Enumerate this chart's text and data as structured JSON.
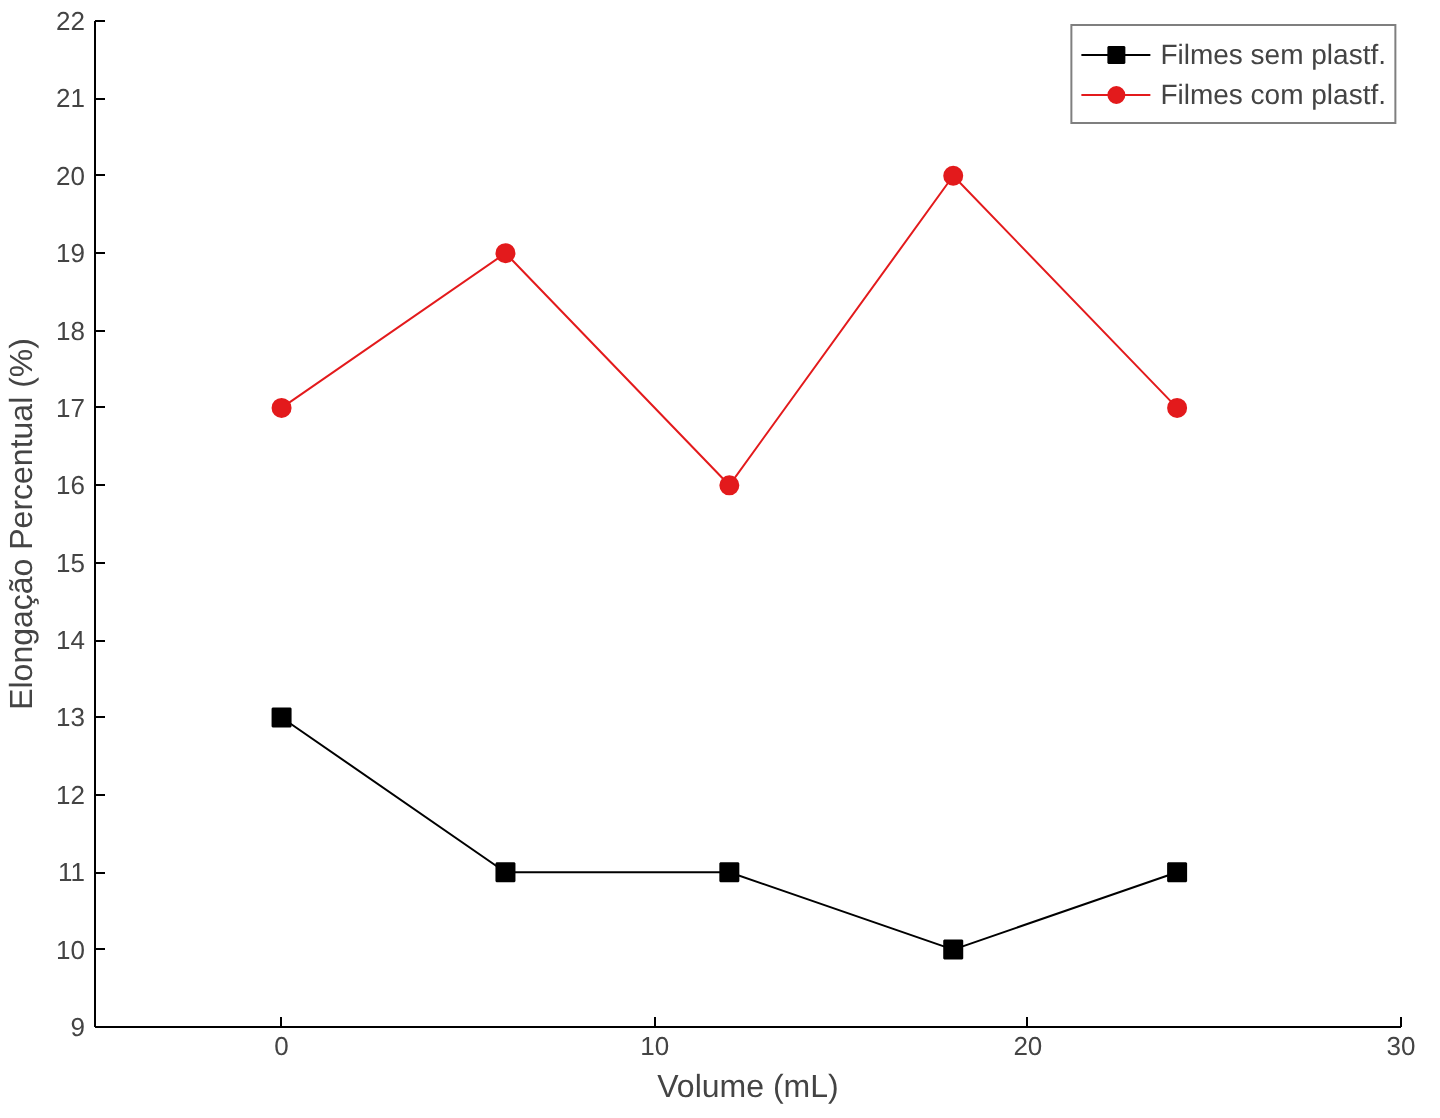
{
  "chart_data": {
    "type": "line",
    "xlabel": "Volume (mL)",
    "ylabel": "Elongação Percentual (%)",
    "x": [
      0,
      6,
      12,
      18,
      24
    ],
    "series": [
      {
        "name": "Filmes sem plastf.",
        "color": "#000000",
        "values": [
          13,
          11,
          11,
          10,
          11
        ],
        "marker": "square"
      },
      {
        "name": "Filmes com plastf.",
        "color": "#e31a1c",
        "values": [
          17,
          19,
          16,
          20,
          17
        ],
        "marker": "circle"
      }
    ],
    "xlim": [
      -5,
      30
    ],
    "xticks": [
      0,
      10,
      20,
      30
    ],
    "ylim": [
      9,
      22
    ],
    "yticks": [
      9,
      10,
      11,
      12,
      13,
      14,
      15,
      16,
      17,
      18,
      19,
      20,
      21,
      22
    ],
    "grid": false,
    "legend": "top right",
    "line_style": "solid"
  }
}
